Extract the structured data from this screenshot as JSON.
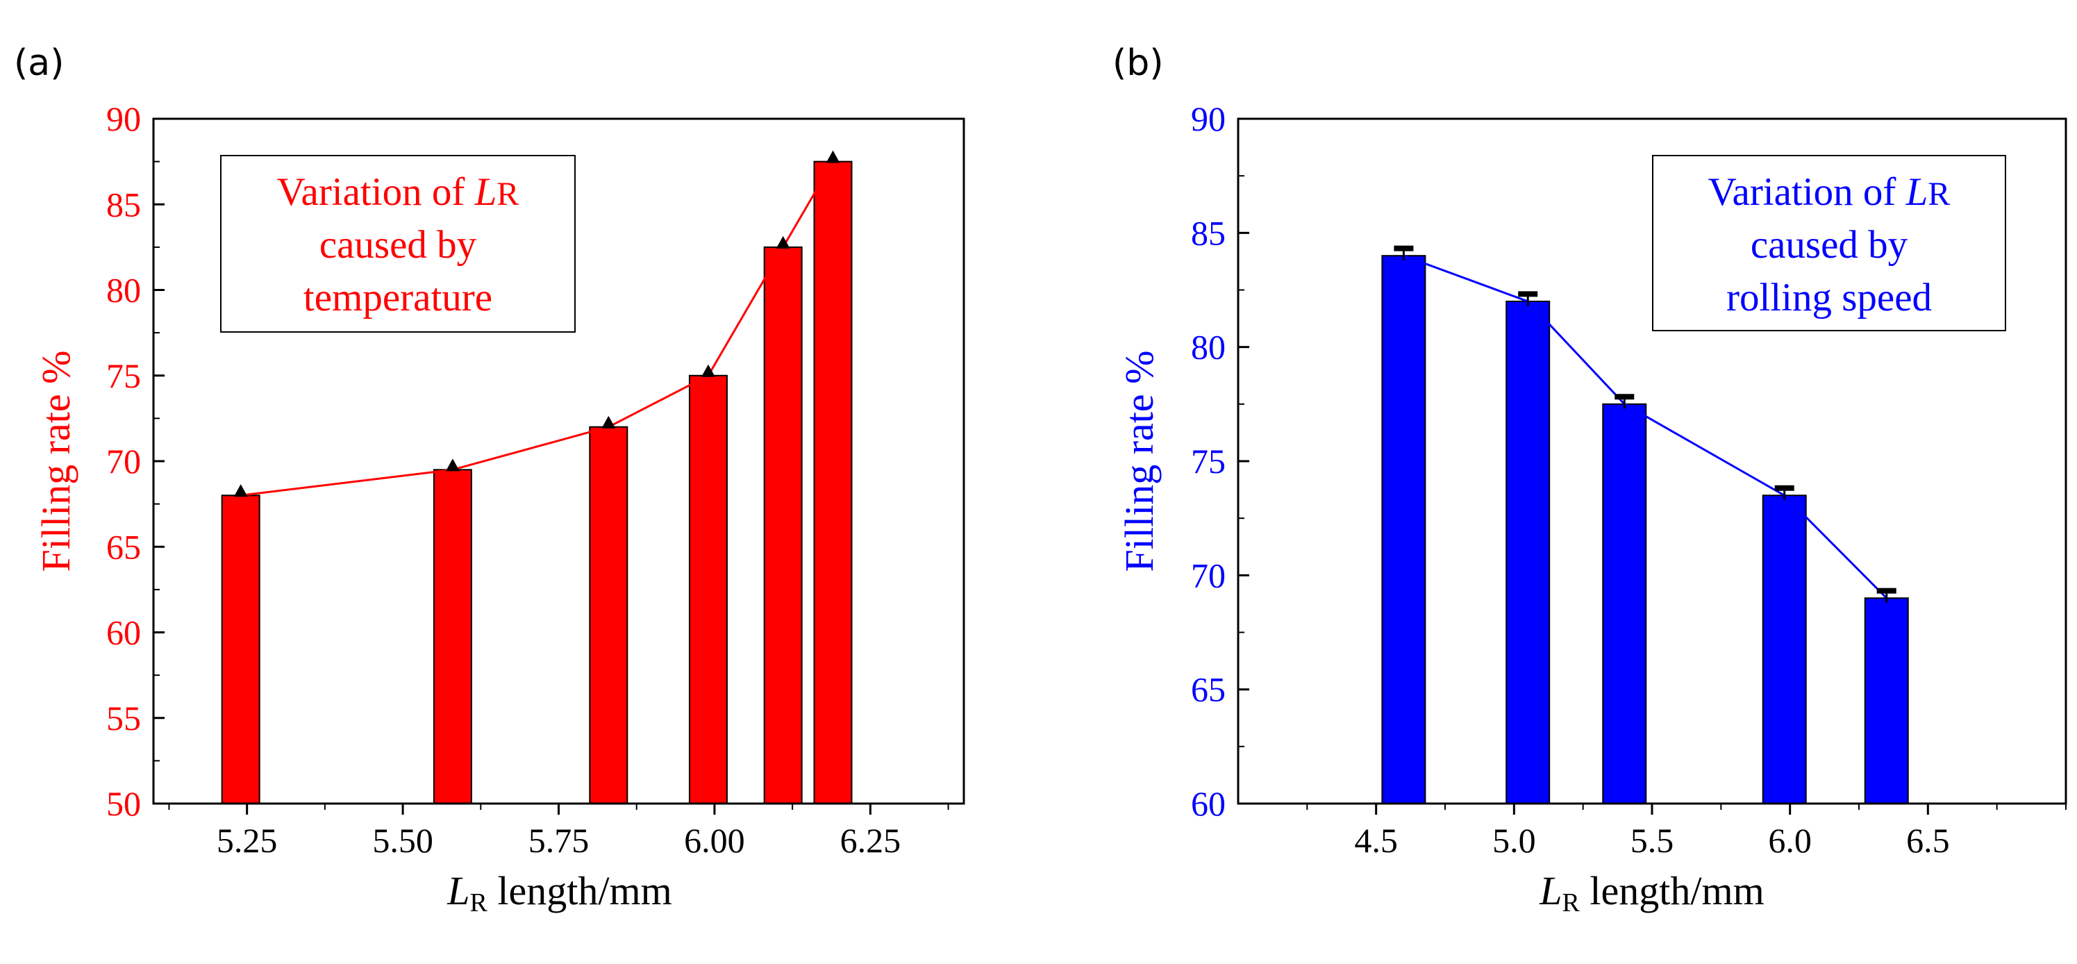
{
  "panels": {
    "a": {
      "label": "(a)"
    },
    "b": {
      "label": "(b)"
    }
  },
  "chart_data": [
    {
      "type": "bar",
      "panel": "a",
      "color": "#ff0000",
      "x": [
        5.24,
        5.58,
        5.83,
        5.99,
        6.11,
        6.19
      ],
      "values": [
        68.0,
        69.5,
        72.0,
        75.0,
        82.5,
        87.5
      ],
      "line_values": [
        68.0,
        69.5,
        72.0,
        75.0,
        82.5,
        87.5
      ],
      "marker": "triangle",
      "xlim": [
        5.1,
        6.4
      ],
      "ylim": [
        50,
        90
      ],
      "xticks": [
        5.25,
        5.5,
        5.75,
        6.0,
        6.25
      ],
      "xtick_labels": [
        "5.25",
        "5.50",
        "5.75",
        "6.00",
        "6.25"
      ],
      "yticks": [
        50,
        55,
        60,
        65,
        70,
        75,
        80,
        85,
        90
      ],
      "ytick_labels": [
        "50",
        "55",
        "60",
        "65",
        "70",
        "75",
        "80",
        "85",
        "90"
      ],
      "xlabel_var": "L",
      "xlabel_sub": "R",
      "xlabel_rest": " length/mm",
      "ylabel": "Filling rate %",
      "annotation": {
        "line1_prefix": "Variation of ",
        "line1_var": "L",
        "line1_sub": "R",
        "line2": "caused by",
        "line3": "temperature"
      },
      "legend_position": "top-left"
    },
    {
      "type": "bar",
      "panel": "b",
      "color": "#0000ff",
      "x": [
        4.6,
        5.05,
        5.4,
        5.98,
        6.35
      ],
      "values": [
        84.0,
        82.0,
        77.5,
        73.5,
        69.0
      ],
      "errors": [
        0.2,
        0.2,
        0.2,
        0.2,
        0.2
      ],
      "xlim": [
        4.0,
        7.0
      ],
      "ylim": [
        60,
        90
      ],
      "xticks": [
        4.5,
        5.0,
        5.5,
        6.0,
        6.5
      ],
      "xtick_labels": [
        "4.5",
        "5.0",
        "5.5",
        "6.0",
        "6.5"
      ],
      "yticks": [
        60,
        65,
        70,
        75,
        80,
        85,
        90
      ],
      "ytick_labels": [
        "60",
        "65",
        "70",
        "75",
        "80",
        "85",
        "90"
      ],
      "xlabel_var": "L",
      "xlabel_sub": "R",
      "xlabel_rest": " length/mm",
      "ylabel": "Filling rate %",
      "annotation": {
        "line1_prefix": "Variation of ",
        "line1_var": "L",
        "line1_sub": "R",
        "line2": "caused by",
        "line3": "rolling speed"
      },
      "legend_position": "top-right"
    }
  ]
}
